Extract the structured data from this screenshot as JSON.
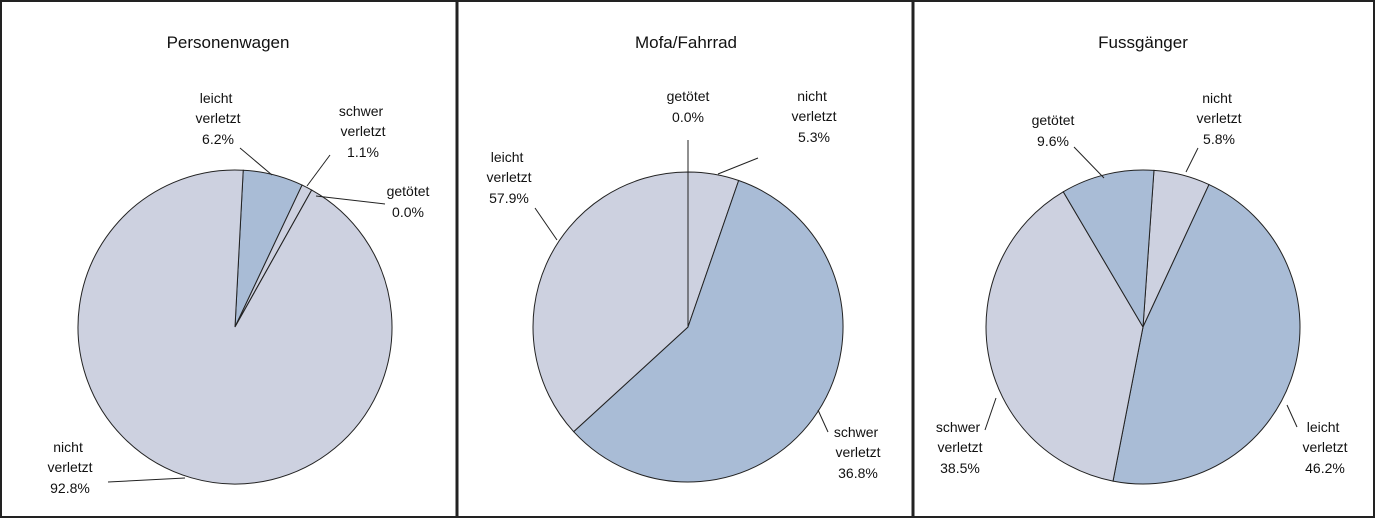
{
  "chart_data": [
    {
      "type": "pie",
      "title": "Personenwagen",
      "categories": [
        "leicht verletzt",
        "schwer verletzt",
        "getötet",
        "nicht verletzt"
      ],
      "values": [
        6.2,
        1.1,
        0.0,
        92.8
      ],
      "value_labels": [
        "6.2%",
        "1.1%",
        "0.0%",
        "92.8%"
      ],
      "colors": [
        "#a9bcd6",
        "#cdd1e0",
        "#cdd1e0",
        "#cdd1e0"
      ]
    },
    {
      "type": "pie",
      "title": "Mofa/Fahrrad",
      "categories": [
        "getötet",
        "nicht verletzt",
        "leicht verletzt",
        "schwer verletzt"
      ],
      "values": [
        0.0,
        5.3,
        57.9,
        36.8
      ],
      "value_labels": [
        "0.0%",
        "5.3%",
        "57.9%",
        "36.8%"
      ],
      "colors": [
        "#cdd1e0",
        "#cdd1e0",
        "#a9bcd6",
        "#cdd1e0"
      ]
    },
    {
      "type": "pie",
      "title": "Fussgänger",
      "categories": [
        "nicht verletzt",
        "leicht verletzt",
        "schwer verletzt",
        "getötet"
      ],
      "values": [
        5.8,
        46.2,
        38.5,
        9.6
      ],
      "value_labels": [
        "5.8%",
        "46.2%",
        "38.5%",
        "9.6%"
      ],
      "colors": [
        "#cdd1e0",
        "#a9bcd6",
        "#cdd1e0",
        "#a9bcd6"
      ]
    }
  ]
}
